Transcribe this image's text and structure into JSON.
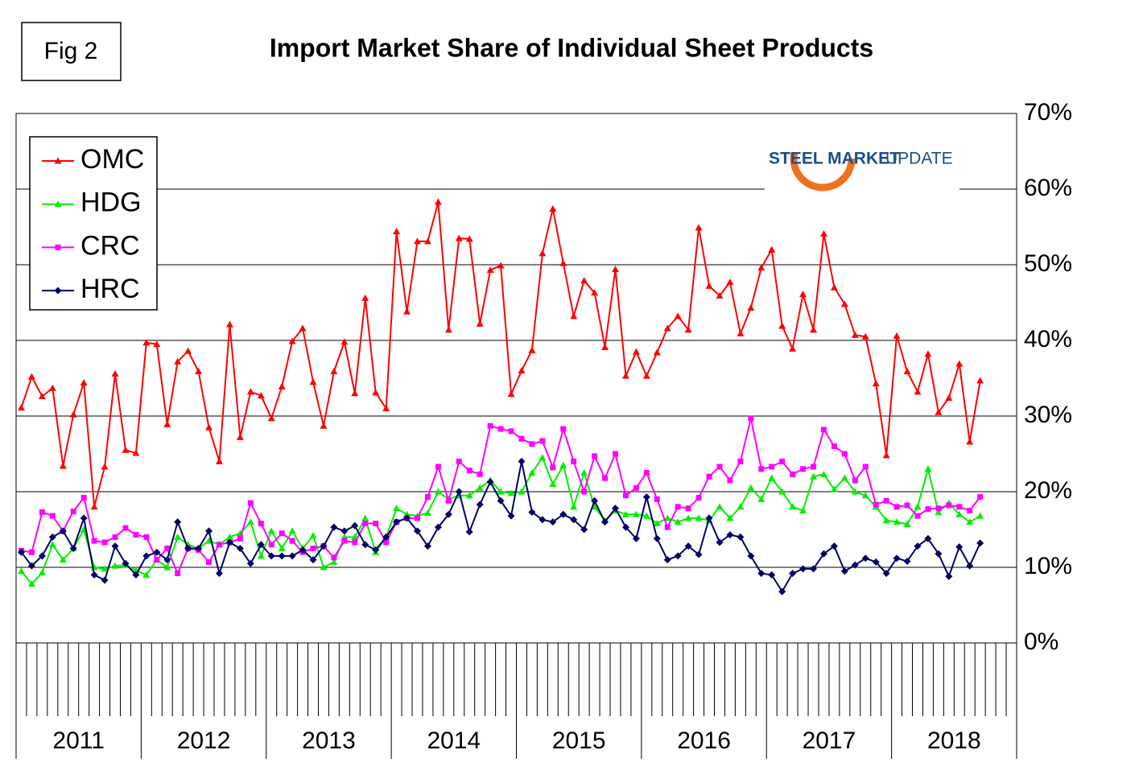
{
  "chart_data": {
    "type": "line",
    "figure_label": "Fig 2",
    "title": "Import Market Share of Individual Sheet Products",
    "logo": {
      "bold": "STEEL MARKET",
      "light": "UPDATE"
    },
    "year_labels": [
      "2011",
      "2012",
      "2013",
      "2014",
      "2015",
      "2016",
      "2017",
      "2018"
    ],
    "categories": [
      null,
      null,
      null,
      null,
      null,
      null,
      null,
      null,
      null,
      null,
      null,
      null,
      null,
      null,
      null,
      null,
      null,
      null,
      null,
      null,
      null,
      null,
      null,
      null,
      null,
      null,
      null,
      null,
      null,
      null,
      null,
      null,
      null,
      null,
      null,
      null,
      null,
      null,
      null,
      null,
      null,
      null,
      null,
      null,
      null,
      null,
      null,
      null,
      null,
      null,
      null,
      null,
      null,
      null,
      null,
      null,
      null,
      null,
      null,
      null,
      null,
      null,
      null,
      null,
      null,
      null,
      null,
      null,
      null,
      null,
      null,
      null,
      null,
      null,
      null,
      null,
      null,
      null,
      null,
      null,
      null,
      null,
      null,
      null,
      null,
      null,
      null,
      null,
      null,
      null,
      null,
      null,
      null
    ],
    "ylim": [
      0,
      70
    ],
    "yticks": [
      {
        "value": 0,
        "label": "0%"
      },
      {
        "value": 10,
        "label": "10%"
      },
      {
        "value": 20,
        "label": "20%"
      },
      {
        "value": 30,
        "label": "30%"
      },
      {
        "value": 40,
        "label": "40%"
      },
      {
        "value": 50,
        "label": "50%"
      },
      {
        "value": 60,
        "label": "60%"
      },
      {
        "value": 70,
        "label": "70%"
      }
    ],
    "grid": true,
    "legend": "upper left",
    "series": [
      {
        "name": "OMC",
        "color": "#ff0000",
        "marker": "triangle",
        "values": [
          31.1,
          35.2,
          32.6,
          33.7,
          23.4,
          30.2,
          34.4,
          18.0,
          23.3,
          35.6,
          25.5,
          25.1,
          39.7,
          39.5,
          28.9,
          37.2,
          38.6,
          35.9,
          28.5,
          24.0,
          42.1,
          27.2,
          33.2,
          32.7,
          29.7,
          33.9,
          39.9,
          41.6,
          34.5,
          28.7,
          35.9,
          39.8,
          33.0,
          45.6,
          33.1,
          31.0,
          54.4,
          43.8,
          53.1,
          53.1,
          58.3,
          41.4,
          53.5,
          53.4,
          42.2,
          49.3,
          49.9,
          32.9,
          36.0,
          38.7,
          51.5,
          57.4,
          50.2,
          43.2,
          47.9,
          46.3,
          39.1,
          49.4,
          35.3,
          38.5,
          35.3,
          38.4,
          41.6,
          43.2,
          41.4,
          54.9,
          47.2,
          45.9,
          47.7,
          40.9,
          44.3,
          49.6,
          52.0,
          41.9,
          38.9,
          46.1,
          41.4,
          54.1,
          47.0,
          44.8,
          40.7,
          40.5,
          34.3,
          24.8,
          40.6,
          35.9,
          33.2,
          38.2,
          30.5,
          32.4,
          36.9,
          26.6,
          34.7
        ]
      },
      {
        "name": "HDG",
        "color": "#00ee00",
        "marker": "triangle",
        "values": [
          9.5,
          7.8,
          9.3,
          13.0,
          11.0,
          12.5,
          15.0,
          10.0,
          9.8,
          10.2,
          10.3,
          9.6,
          9.0,
          11.0,
          10.0,
          14.0,
          13.0,
          12.5,
          13.5,
          13.0,
          14.0,
          14.5,
          16.0,
          11.5,
          14.8,
          12.5,
          14.8,
          12.5,
          14.2,
          10.0,
          10.7,
          14.0,
          14.0,
          16.5,
          12.0,
          14.0,
          17.8,
          17.0,
          16.8,
          17.2,
          20.0,
          19.0,
          19.5,
          19.5,
          20.5,
          21.5,
          20.0,
          19.8,
          20.0,
          22.5,
          24.5,
          21.0,
          23.5,
          18.0,
          22.5,
          18.0,
          16.2,
          17.5,
          17.0,
          17.0,
          16.8,
          15.8,
          16.5,
          16.0,
          16.5,
          16.5,
          16.2,
          18.0,
          16.5,
          18.0,
          20.5,
          19.0,
          21.8,
          20.0,
          18.0,
          17.5,
          22.0,
          22.3,
          20.3,
          21.8,
          20.0,
          19.5,
          18.0,
          16.2,
          16.0,
          15.7,
          18.0,
          23.0,
          17.3,
          18.5,
          17.0,
          16.0,
          16.8
        ]
      },
      {
        "name": "CRC",
        "color": "#ff00ff",
        "marker": "square",
        "values": [
          12.2,
          12.0,
          17.3,
          16.8,
          14.8,
          17.4,
          19.2,
          13.5,
          13.3,
          14.0,
          15.2,
          14.3,
          14.0,
          11.0,
          12.5,
          9.2,
          12.5,
          12.3,
          10.7,
          13.0,
          13.3,
          13.8,
          18.5,
          15.8,
          13.0,
          14.5,
          13.5,
          12.0,
          12.5,
          12.8,
          11.3,
          13.5,
          13.3,
          15.8,
          15.8,
          13.3,
          16.0,
          16.5,
          16.5,
          19.3,
          23.3,
          18.8,
          24.0,
          22.8,
          22.3,
          28.7,
          28.3,
          28.0,
          27.0,
          26.3,
          26.7,
          23.2,
          28.3,
          24.0,
          20.0,
          24.7,
          21.8,
          25.0,
          19.5,
          20.5,
          22.5,
          19.0,
          15.3,
          18.0,
          17.8,
          19.2,
          22.0,
          23.3,
          21.5,
          24.0,
          29.7,
          23.0,
          23.3,
          24.0,
          22.3,
          23.0,
          23.3,
          28.2,
          26.0,
          25.0,
          21.5,
          23.3,
          18.3,
          18.8,
          18.0,
          18.2,
          16.8,
          17.7,
          17.8,
          18.2,
          18.0,
          17.5,
          19.3
        ]
      },
      {
        "name": "HRC",
        "color": "#000066",
        "marker": "diamond",
        "values": [
          12.0,
          10.2,
          11.5,
          14.0,
          14.8,
          12.5,
          16.5,
          9.0,
          8.3,
          12.8,
          10.5,
          9.0,
          11.5,
          12.0,
          11.0,
          16.0,
          12.5,
          12.5,
          14.8,
          9.2,
          13.3,
          12.5,
          10.5,
          13.0,
          11.5,
          11.5,
          11.5,
          12.3,
          11.0,
          12.8,
          15.3,
          14.8,
          15.5,
          13.0,
          12.3,
          14.0,
          16.0,
          16.5,
          14.8,
          12.8,
          15.3,
          17.0,
          20.0,
          14.7,
          18.3,
          21.3,
          18.8,
          16.8,
          24.0,
          17.3,
          16.3,
          16.0,
          17.0,
          16.3,
          15.0,
          18.8,
          16.0,
          17.8,
          15.3,
          13.8,
          19.3,
          13.8,
          11.0,
          11.5,
          12.8,
          11.7,
          16.5,
          13.3,
          14.3,
          14.0,
          11.5,
          9.2,
          9.0,
          6.8,
          9.2,
          9.8,
          9.8,
          11.8,
          12.8,
          9.5,
          10.3,
          11.2,
          10.7,
          9.2,
          11.2,
          10.8,
          12.8,
          13.8,
          11.8,
          8.8,
          12.7,
          10.2,
          13.2
        ]
      }
    ]
  }
}
